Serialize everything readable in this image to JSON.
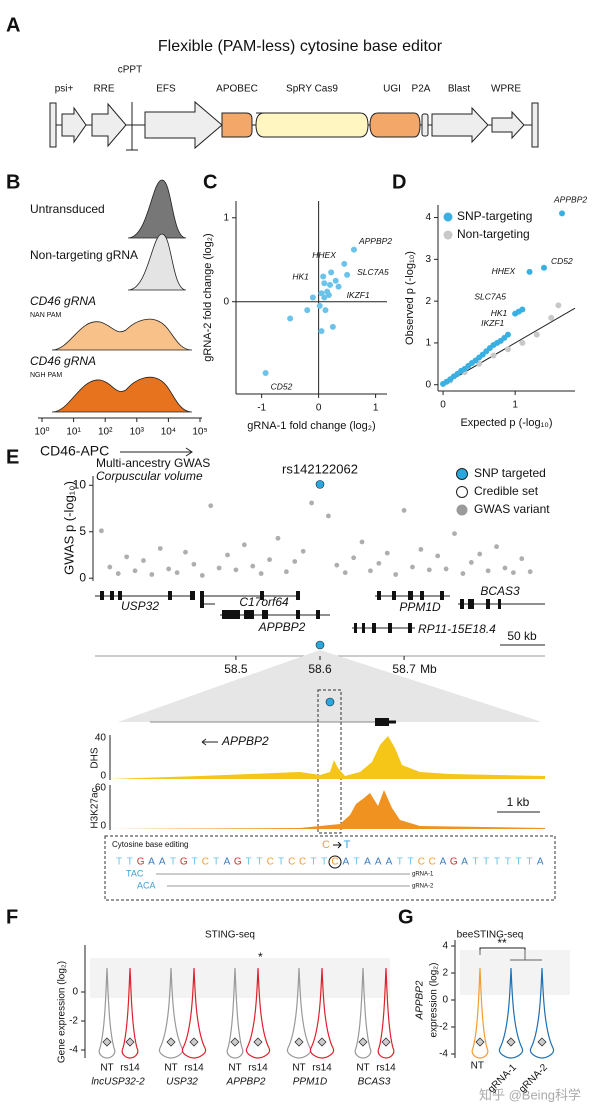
{
  "panel_labels": [
    "A",
    "B",
    "C",
    "D",
    "E",
    "F",
    "G"
  ],
  "a": {
    "title": "Flexible (PAM-less) cytosine base editor",
    "elements": [
      "psi+",
      "RRE",
      "cPPT",
      "EFS",
      "APOBEC",
      "SpRY Cas9",
      "UGI",
      "P2A",
      "Blast",
      "WPRE"
    ]
  },
  "b": {
    "samples": [
      {
        "name": "Untransduced"
      },
      {
        "name": "Non-targeting gRNA"
      },
      {
        "name": "CD46 gRNA",
        "pam": "NAN PAM"
      },
      {
        "name": "CD46 gRNA",
        "pam": "NGH PAM"
      }
    ],
    "xticks": [
      {
        "value": 0,
        "label": "10⁰"
      },
      {
        "value": 1,
        "label": "10¹"
      },
      {
        "value": 2,
        "label": "10²"
      },
      {
        "value": 3,
        "label": "10³"
      },
      {
        "value": 4,
        "label": "10⁴"
      },
      {
        "value": 5,
        "label": "10⁵"
      }
    ],
    "xlabel": "CD46-APC"
  },
  "chart_data": [
    {
      "type": "scatter",
      "xlabel": "gRNA-1 fold change (log₂)",
      "ylabel": "gRNA-2 fold change (log₂)",
      "color": "#6cc3ea",
      "xlim": [
        -1.45,
        1.2
      ],
      "ylim": [
        -1.1,
        1.2
      ],
      "xticks": [
        -1,
        0,
        1
      ],
      "yticks": [
        0,
        1
      ],
      "x": [
        0.62,
        0.45,
        0.5,
        0.35,
        0.1,
        -0.93,
        0.05,
        0.1,
        0.15,
        0.2,
        0.08,
        0.12,
        0.02,
        -0.1,
        0.3,
        -0.5,
        0.25,
        0.05,
        0.18,
        0.22,
        -0.2
      ],
      "values": [
        0.62,
        0.45,
        0.32,
        0.18,
        0.22,
        -0.85,
        0.1,
        0.05,
        0.12,
        0.2,
        0.3,
        -0.1,
        -0.05,
        0.05,
        0.25,
        -0.2,
        -0.3,
        -0.35,
        0.08,
        0.35,
        -0.1
      ],
      "point_labels": [
        "APPBP2",
        "HHEX",
        "SLC7A5",
        "IKZF1",
        "HK1",
        "CD52",
        null,
        null,
        null,
        null,
        null,
        null,
        null,
        null,
        null,
        null,
        null,
        null,
        null,
        null,
        null
      ]
    },
    {
      "type": "scatter",
      "xlabel": "Expected p (-log₁₀)",
      "ylabel": "Observed p (-log₁₀)",
      "xlim": [
        -0.07,
        1.83
      ],
      "ylim": [
        -0.15,
        4.3
      ],
      "xticks": [
        0,
        1
      ],
      "yticks": [
        0,
        1,
        2,
        3,
        4
      ],
      "legend": "top-left",
      "series": [
        {
          "name": "SNP-targeting",
          "color": "#3ab0e2",
          "x": [
            0,
            0.05,
            0.1,
            0.15,
            0.2,
            0.25,
            0.3,
            0.35,
            0.4,
            0.45,
            0.5,
            0.55,
            0.6,
            0.65,
            0.7,
            0.75,
            0.8,
            0.85,
            0.9,
            1.0,
            1.05,
            1.1,
            1.2,
            1.4,
            1.65
          ],
          "values": [
            0.02,
            0.07,
            0.13,
            0.2,
            0.26,
            0.33,
            0.38,
            0.45,
            0.52,
            0.58,
            0.65,
            0.72,
            0.8,
            0.88,
            0.95,
            1.0,
            1.05,
            1.12,
            1.2,
            1.7,
            1.75,
            1.8,
            2.7,
            2.8,
            4.1
          ],
          "point_labels": [
            null,
            null,
            null,
            null,
            null,
            null,
            null,
            null,
            null,
            null,
            null,
            null,
            null,
            null,
            null,
            null,
            null,
            null,
            null,
            "IKZF1",
            "HK1",
            "SLC7A5",
            "HHEX",
            "CD52",
            "APPBP2"
          ]
        },
        {
          "name": "Non-targeting",
          "color": "#c8c8c8",
          "x": [
            0.1,
            0.3,
            0.5,
            0.7,
            0.9,
            1.1,
            1.3,
            1.5,
            1.6
          ],
          "values": [
            0.1,
            0.3,
            0.5,
            0.7,
            0.85,
            1.0,
            1.2,
            1.6,
            1.9
          ]
        }
      ]
    },
    {
      "type": "scatter",
      "title": "Multi-ancestry GWAS",
      "subtitle": "Corpuscular volume",
      "ylabel": "GWAS p (-log₁₀)",
      "xlabel": "Mb",
      "annotation": "rs142122062",
      "xlim": [
        58.33,
        58.87
      ],
      "ylim": [
        -0.3,
        11
      ],
      "xticks": [
        58.5,
        58.6,
        58.7
      ],
      "yticks": [
        0,
        5,
        10
      ],
      "series": [
        {
          "name": "SNP targeted",
          "color": "#29a8e0",
          "x": [
            58.6
          ],
          "values": [
            10.1
          ]
        },
        {
          "name": "Credible set",
          "color": "#ffffff",
          "x": [],
          "values": []
        },
        {
          "name": "GWAS variant",
          "color": "#9a9a9a",
          "x": [
            58.34,
            58.35,
            58.36,
            58.37,
            58.38,
            58.39,
            58.4,
            58.41,
            58.42,
            58.43,
            58.44,
            58.45,
            58.46,
            58.47,
            58.48,
            58.49,
            58.5,
            58.51,
            58.52,
            58.53,
            58.54,
            58.55,
            58.56,
            58.57,
            58.58,
            58.59,
            58.61,
            58.62,
            58.63,
            58.64,
            58.65,
            58.66,
            58.67,
            58.68,
            58.69,
            58.7,
            58.71,
            58.72,
            58.73,
            58.74,
            58.75,
            58.76,
            58.77,
            58.78,
            58.79,
            58.8,
            58.81,
            58.82,
            58.83,
            58.84,
            58.85
          ],
          "values": [
            5.1,
            1.2,
            0.5,
            2.3,
            0.8,
            1.9,
            0.4,
            3.2,
            1.0,
            0.6,
            2.8,
            1.5,
            0.3,
            7.8,
            1.1,
            2.5,
            0.9,
            3.6,
            1.3,
            0.5,
            2.0,
            4.3,
            0.7,
            1.8,
            2.9,
            8.1,
            6.7,
            1.4,
            0.6,
            2.2,
            3.9,
            0.8,
            1.6,
            2.7,
            0.4,
            7.3,
            1.2,
            3.1,
            0.9,
            2.4,
            1.0,
            4.8,
            0.5,
            1.7,
            2.6,
            0.8,
            3.4,
            1.1,
            0.6,
            2.1,
            0.7
          ]
        }
      ]
    }
  ],
  "e": {
    "genes": [
      "USP32",
      "C17orf64",
      "APPBP2",
      "PPM1D",
      "BCAS3",
      "RP11-15E18.4"
    ],
    "scale": "50 kb",
    "zoom_gene": "APPBP2",
    "tracks": [
      {
        "name": "DHS",
        "ticks": [
          40,
          0
        ]
      },
      {
        "name": "H3K27ac",
        "ticks": [
          60,
          0
        ]
      }
    ],
    "zoom_scale": "1 kb",
    "editing": {
      "title": "Cytosine base editing",
      "from": "C",
      "to": "T",
      "sequence": "TTGAATGTCTAGTTCTCCTTCATAAATTCCAGATTTTTTA",
      "guides": [
        {
          "seq": "TAC",
          "name": "gRNA-1"
        },
        {
          "seq": "ACA",
          "name": "gRNA-2"
        }
      ]
    }
  },
  "f": {
    "title": "STING-seq",
    "ylabel": "Gene expression (log₂)",
    "yticks": [
      0,
      -2,
      -4
    ],
    "genes": [
      "lncUSP32-2",
      "USP32",
      "APPBP2",
      "PPM1D",
      "BCAS3"
    ],
    "groups": [
      "NT",
      "rs14"
    ],
    "significance": "*"
  },
  "g": {
    "title": "beeSTING-seq",
    "ylabel_gene": "APPBP2",
    "ylabel": "expression (log₂)",
    "yticks": [
      4,
      2,
      0,
      -2,
      -4
    ],
    "groups": [
      "NT",
      "gRNA-1",
      "gRNA-2"
    ],
    "significance": "**"
  },
  "watermark": "知乎 @Being科学"
}
